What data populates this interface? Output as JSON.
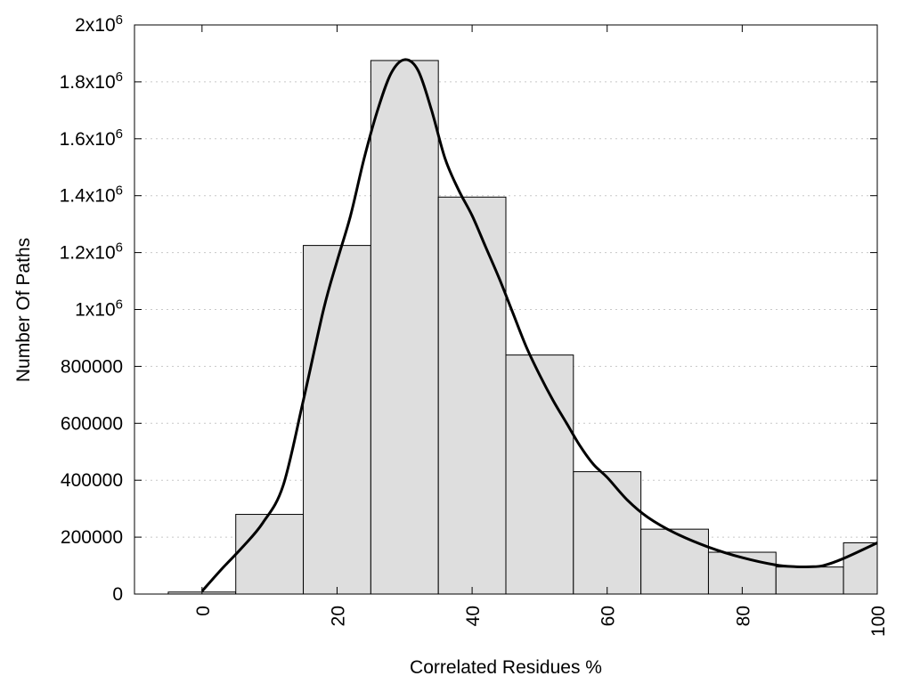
{
  "chart_data": {
    "type": "bar",
    "xlabel": "Correlated Residues %",
    "ylabel": "Number Of Paths",
    "xlim": [
      -10,
      100
    ],
    "ylim": [
      0,
      2000000
    ],
    "grid": "horizontal dotted",
    "bin_width": 10,
    "bins": [
      {
        "center": 0,
        "value": 7000
      },
      {
        "center": 10,
        "value": 280000
      },
      {
        "center": 20,
        "value": 1225000
      },
      {
        "center": 30,
        "value": 1875000
      },
      {
        "center": 40,
        "value": 1395000
      },
      {
        "center": 50,
        "value": 840000
      },
      {
        "center": 60,
        "value": 430000
      },
      {
        "center": 70,
        "value": 228000
      },
      {
        "center": 80,
        "value": 147000
      },
      {
        "center": 90,
        "value": 95000
      },
      {
        "center": 100,
        "value": 180000
      }
    ],
    "curve": {
      "x": [
        0,
        3,
        6,
        9,
        12,
        15,
        18,
        20,
        22,
        24,
        26,
        28,
        30,
        32,
        34,
        36,
        38,
        40,
        42,
        44,
        46,
        48,
        50,
        52,
        54,
        56,
        58,
        60,
        63,
        66,
        70,
        75,
        80,
        85,
        88,
        90,
        92,
        95,
        100
      ],
      "y": [
        10000,
        90000,
        165000,
        250000,
        380000,
        680000,
        1000000,
        1170000,
        1330000,
        1530000,
        1700000,
        1830000,
        1878000,
        1840000,
        1700000,
        1530000,
        1420000,
        1330000,
        1220000,
        1110000,
        990000,
        870000,
        770000,
        680000,
        600000,
        520000,
        455000,
        410000,
        330000,
        270000,
        215000,
        165000,
        128000,
        102000,
        96000,
        96000,
        100000,
        125000,
        180000
      ]
    },
    "y_ticks": [
      {
        "value": 0,
        "label": "0"
      },
      {
        "value": 200000,
        "label": "200000"
      },
      {
        "value": 400000,
        "label": "400000"
      },
      {
        "value": 600000,
        "label": "600000"
      },
      {
        "value": 800000,
        "label": "800000"
      },
      {
        "value": 1000000,
        "label": "1x10",
        "exp": "6"
      },
      {
        "value": 1200000,
        "label": "1.2x10",
        "exp": "6"
      },
      {
        "value": 1400000,
        "label": "1.4x10",
        "exp": "6"
      },
      {
        "value": 1600000,
        "label": "1.6x10",
        "exp": "6"
      },
      {
        "value": 1800000,
        "label": "1.8x10",
        "exp": "6"
      },
      {
        "value": 2000000,
        "label": "2x10",
        "exp": "6"
      }
    ],
    "x_ticks": [
      {
        "value": 0,
        "label": "0"
      },
      {
        "value": 20,
        "label": "20"
      },
      {
        "value": 40,
        "label": "40"
      },
      {
        "value": 60,
        "label": "60"
      },
      {
        "value": 80,
        "label": "80"
      },
      {
        "value": 100,
        "label": "100"
      }
    ]
  }
}
